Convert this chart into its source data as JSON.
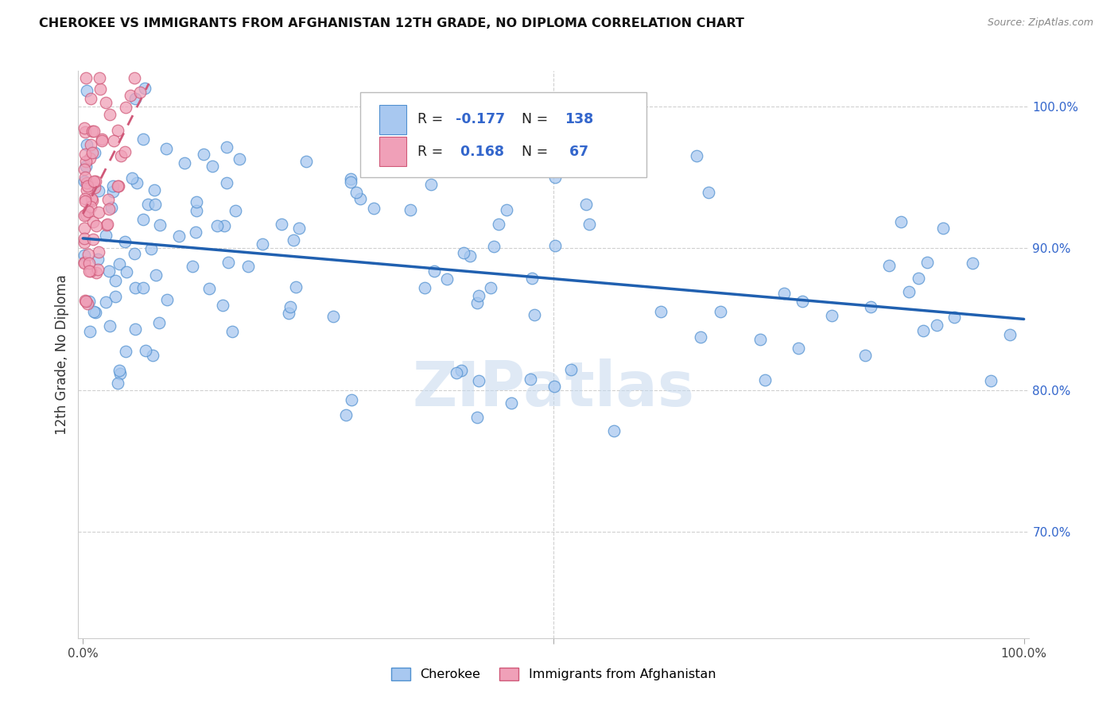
{
  "title": "CHEROKEE VS IMMIGRANTS FROM AFGHANISTAN 12TH GRADE, NO DIPLOMA CORRELATION CHART",
  "source": "Source: ZipAtlas.com",
  "ylabel": "12th Grade, No Diploma",
  "r_cherokee": -0.177,
  "n_cherokee": 138,
  "r_afghanistan": 0.168,
  "n_afghanistan": 67,
  "color_cherokee_fill": "#a8c8f0",
  "color_cherokee_edge": "#5090d0",
  "color_afghanistan_fill": "#f0a0b8",
  "color_afghanistan_edge": "#d05878",
  "color_line_cherokee": "#2060b0",
  "color_line_afghanistan": "#d05878",
  "color_rn_text": "#3366cc",
  "background_color": "#ffffff",
  "watermark": "ZIPatlas",
  "ylim_low": 0.625,
  "ylim_high": 1.025,
  "xlim_low": -0.005,
  "xlim_high": 1.005
}
